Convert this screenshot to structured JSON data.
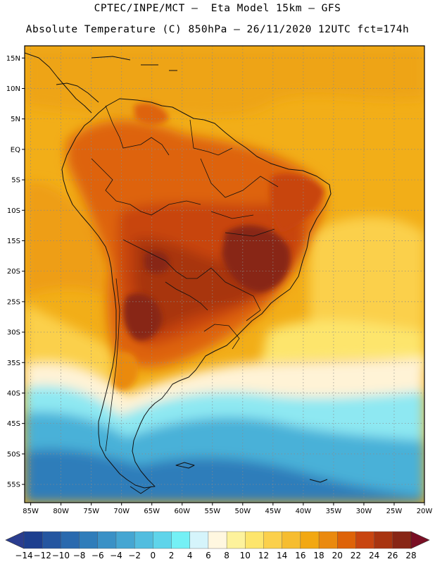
{
  "title": {
    "line1": "CPTEC/INPE/MCT –  Eta Model 15km – GFS",
    "line2": "Absolute Temperature (C) 850hPa – 26/11/2020 12UTC fct=174h"
  },
  "axes": {
    "lat_labels": [
      "15N",
      "10N",
      "5N",
      "EQ",
      "5S",
      "10S",
      "15S",
      "20S",
      "25S",
      "30S",
      "35S",
      "40S",
      "45S",
      "50S",
      "55S"
    ],
    "lat_values": [
      15,
      10,
      5,
      0,
      -5,
      -10,
      -15,
      -20,
      -25,
      -30,
      -35,
      -40,
      -45,
      -50,
      -55
    ],
    "lon_labels": [
      "85W",
      "80W",
      "75W",
      "70W",
      "65W",
      "60W",
      "55W",
      "50W",
      "45W",
      "40W",
      "35W",
      "30W",
      "25W",
      "20W"
    ],
    "lon_values": [
      -85,
      -80,
      -75,
      -70,
      -65,
      -60,
      -55,
      -50,
      -45,
      -40,
      -35,
      -30,
      -25,
      -20
    ],
    "lat_range": [
      -58,
      17
    ],
    "lon_range": [
      -86,
      -20
    ]
  },
  "colorbar": {
    "labels": [
      "-14",
      "-12",
      "-10",
      "-8",
      "-6",
      "-4",
      "-2",
      "0",
      "2",
      "4",
      "6",
      "8",
      "10",
      "12",
      "14",
      "16",
      "18",
      "20",
      "22",
      "24",
      "26",
      "28"
    ],
    "colors": [
      "#1d3f8f",
      "#2456a0",
      "#2a6aae",
      "#2f7dba",
      "#3a91c6",
      "#45a6d2",
      "#52bddf",
      "#5fd4ea",
      "#74f0f5",
      "#d5f4fb",
      "#fff7e0",
      "#fdf29c",
      "#fde56c",
      "#fbd04c",
      "#f6bd30",
      "#f2a812",
      "#ea8a0e",
      "#de6308",
      "#c84510",
      "#a83410",
      "#882615"
    ],
    "left_cap": "#2a3d8f",
    "right_cap": "#7a0f24"
  },
  "colors": {
    "sea_warm": "#f2ae18",
    "sea_hot": "#ea8f12",
    "land_hot": "#c8570e",
    "land_core": "#9e3a12",
    "cool_yellow": "#fde47a",
    "pale": "#fff3d6",
    "cold_cyan": "#8ee8f2",
    "cold_blue": "#48b1d8",
    "deep_blue": "#2f7dba",
    "outline": "#111111",
    "grid": "#8a8a8a"
  }
}
